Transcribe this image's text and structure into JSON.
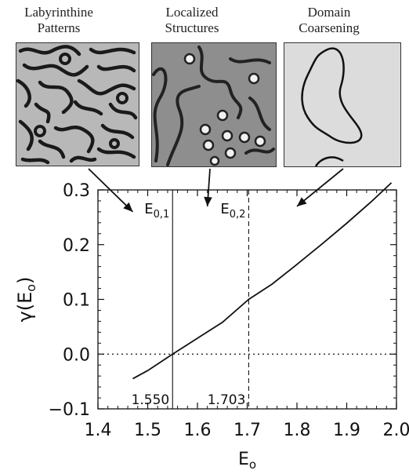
{
  "panels": [
    {
      "title_line1": "Labyrinthine",
      "title_line2": "Patterns",
      "image": "labyrinth-pattern"
    },
    {
      "title_line1": "Localized",
      "title_line2": "Structures",
      "image": "spots-and-stripes-pattern"
    },
    {
      "title_line1": "Domain",
      "title_line2": "Coarsening",
      "image": "single-domain-pattern"
    }
  ],
  "chart_data": {
    "type": "line",
    "xlabel": "E",
    "xlabel_sub": "o",
    "ylabel": "γ(E",
    "ylabel_sub": "o",
    "ylabel_tail": ")",
    "xlim": [
      1.4,
      2.0
    ],
    "ylim": [
      -0.1,
      0.3
    ],
    "xticks": [
      1.4,
      1.5,
      1.6,
      1.7,
      1.8,
      1.9,
      2.0
    ],
    "xtick_labels": [
      "1.4",
      "1.5",
      "1.6",
      "1.7",
      "1.8",
      "1.9",
      "2.0"
    ],
    "yticks": [
      -0.1,
      0.0,
      0.1,
      0.2,
      0.3
    ],
    "ytick_labels": [
      "−0.1",
      "0.0",
      "0.1",
      "0.2",
      "0.3"
    ],
    "series": [
      {
        "x": [
          1.47,
          1.5,
          1.55,
          1.6,
          1.65,
          1.703,
          1.75,
          1.8,
          1.85,
          1.9,
          1.95,
          1.99
        ],
        "y": [
          -0.045,
          -0.03,
          0.0,
          0.029,
          0.058,
          0.1,
          0.128,
          0.164,
          0.201,
          0.239,
          0.279,
          0.313
        ]
      }
    ],
    "vlines": [
      {
        "x": 1.55,
        "style": "solid",
        "label": "E",
        "label_sub": "0,1",
        "value_label": "1.550"
      },
      {
        "x": 1.703,
        "style": "dashed",
        "label": "E",
        "label_sub": "0,2",
        "value_label": "1.703"
      }
    ],
    "hline": {
      "y": 0.0,
      "style": "dotted"
    },
    "arrows": [
      {
        "from_panel": 0,
        "to_x": 1.47,
        "to_y": 0.26
      },
      {
        "from_panel": 1,
        "to_x": 1.62,
        "to_y": 0.27
      },
      {
        "from_panel": 2,
        "to_x": 1.8,
        "to_y": 0.27
      }
    ]
  }
}
